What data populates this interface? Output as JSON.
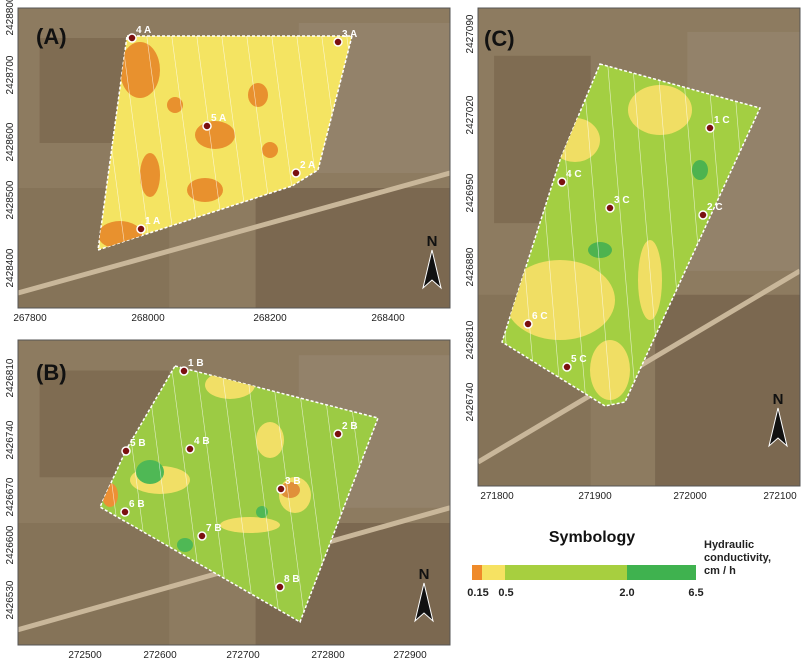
{
  "panels": [
    {
      "label": "(A)",
      "xticks": [
        "267800",
        "268000",
        "268200",
        "268400"
      ],
      "yticks": [
        "2428800",
        "2428700",
        "2428600",
        "2428500",
        "2428400"
      ],
      "points": [
        "1 A",
        "2 A",
        "3 A",
        "4 A",
        "5 A"
      ],
      "north": "N"
    },
    {
      "label": "(B)",
      "xticks": [
        "272500",
        "272600",
        "272700",
        "272800",
        "272900"
      ],
      "yticks": [
        "2426810",
        "2426740",
        "2426670",
        "2426600",
        "2426530"
      ],
      "points": [
        "1 B",
        "2 B",
        "3 B",
        "4 B",
        "5 B",
        "6 B",
        "7 B",
        "8 B"
      ],
      "north": "N"
    },
    {
      "label": "(C)",
      "xticks": [
        "271800",
        "271900",
        "272000",
        "272100"
      ],
      "yticks": [
        "2427090",
        "2427020",
        "2426950",
        "2426880",
        "2426810",
        "2426740"
      ],
      "points": [
        "1 C",
        "2 C",
        "3 C",
        "4 C",
        "5 C",
        "6 C"
      ],
      "north": "N"
    }
  ],
  "legend": {
    "title": "Symbology",
    "caption": [
      "Hydraulic",
      "conductivity,",
      "cm / h"
    ],
    "breaks": [
      "0.15",
      "0.5",
      "2.0",
      "6.5"
    ]
  }
}
